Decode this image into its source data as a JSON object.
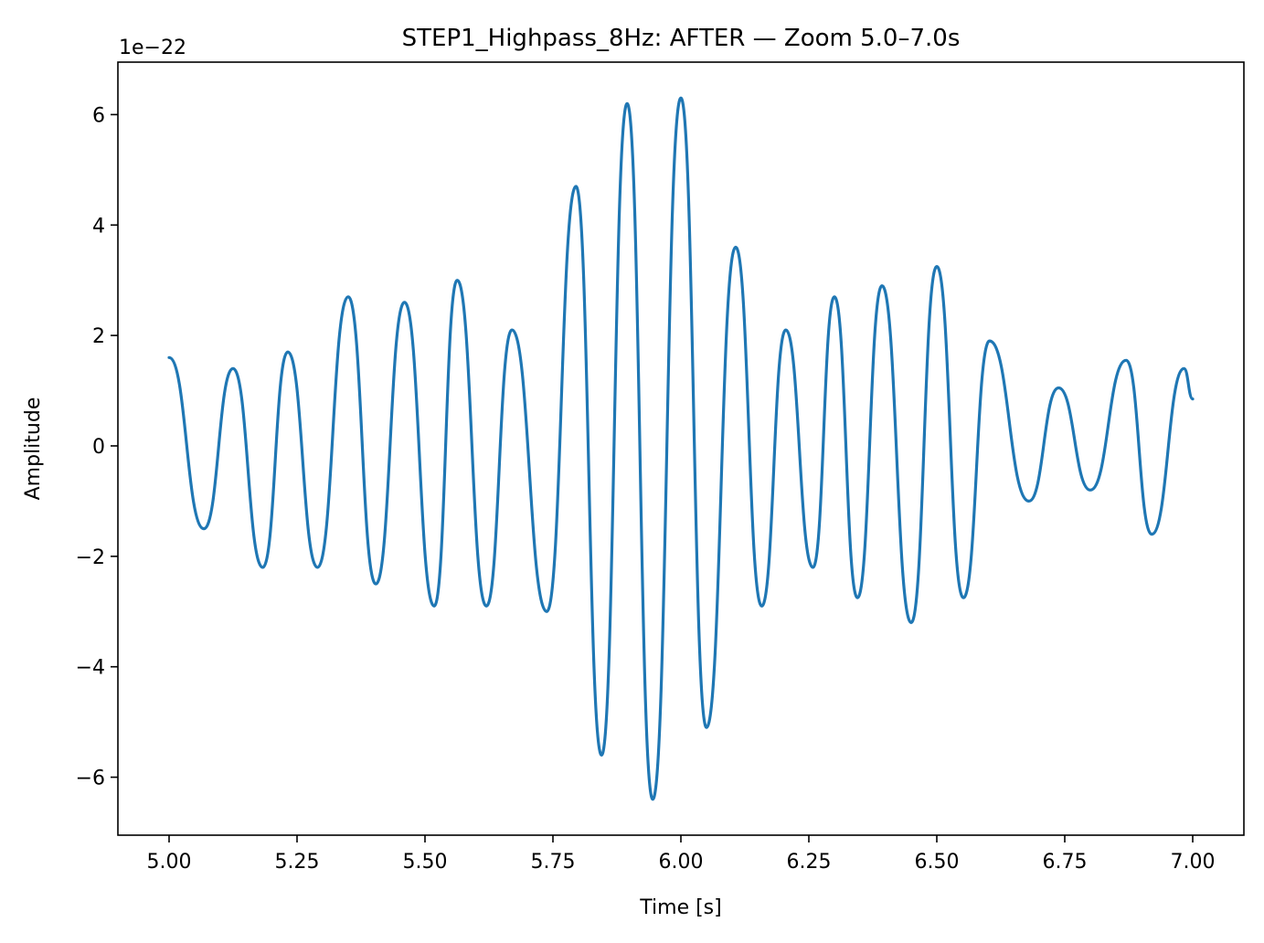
{
  "chart_data": {
    "type": "line",
    "title": "STEP1_Highpass_8Hz: AFTER — Zoom 5.0–7.0s",
    "xlabel": "Time [s]",
    "ylabel": "Amplitude",
    "y_offset_label": "1e−22",
    "xlim": [
      4.9,
      7.1
    ],
    "ylim": [
      -7.05,
      6.95
    ],
    "xticks": [
      5.0,
      5.25,
      5.5,
      5.75,
      6.0,
      6.25,
      6.5,
      6.75,
      7.0
    ],
    "xtick_labels": [
      "5.00",
      "5.25",
      "5.50",
      "5.75",
      "6.00",
      "6.25",
      "6.50",
      "6.75",
      "7.00"
    ],
    "yticks": [
      -6,
      -4,
      -2,
      0,
      2,
      4,
      6
    ],
    "ytick_labels": [
      "−6",
      "−4",
      "−2",
      "0",
      "2",
      "4",
      "6"
    ],
    "grid": false,
    "line_color": "#1f77b4",
    "series": [
      {
        "x": [
          5.0,
          5.068,
          5.125,
          5.183,
          5.232,
          5.29,
          5.35,
          5.404,
          5.46,
          5.518,
          5.563,
          5.62,
          5.67,
          5.738,
          5.795,
          5.845,
          5.895,
          5.945,
          6.0,
          6.05,
          6.107,
          6.158,
          6.205,
          6.258,
          6.3,
          6.345,
          6.393,
          6.45,
          6.5,
          6.552,
          6.603,
          6.68,
          6.738,
          6.8,
          6.87,
          6.92,
          6.983,
          7.0
        ],
        "y": [
          1.6,
          -1.5,
          1.4,
          -2.2,
          1.7,
          -2.2,
          2.7,
          -2.5,
          2.6,
          -2.9,
          3.0,
          -2.9,
          2.1,
          -3.0,
          4.7,
          -5.6,
          6.2,
          -6.4,
          6.3,
          -5.1,
          3.6,
          -2.9,
          2.1,
          -2.2,
          2.7,
          -2.75,
          2.9,
          -3.2,
          3.25,
          -2.75,
          1.9,
          -1.0,
          1.05,
          -0.8,
          1.55,
          -1.6,
          1.4,
          0.85
        ]
      }
    ]
  }
}
